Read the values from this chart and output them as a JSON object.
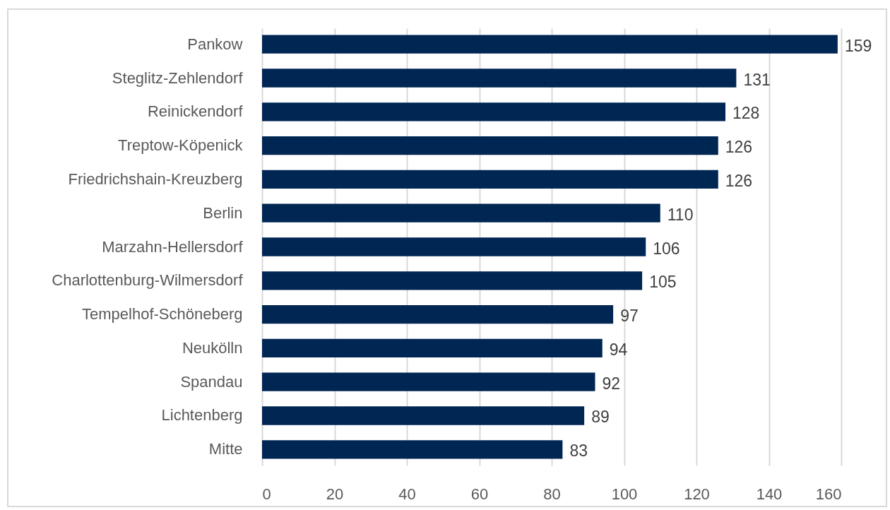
{
  "chart_data": {
    "type": "bar",
    "orientation": "horizontal",
    "categories": [
      "Pankow",
      "Steglitz-Zehlendorf",
      "Reinickendorf",
      "Treptow-Köpenick",
      "Friedrichshain-Kreuzberg",
      "Berlin",
      "Marzahn-Hellersdorf",
      "Charlottenburg-Wilmersdorf",
      "Tempelhof-Schöneberg",
      "Neukölln",
      "Spandau",
      "Lichtenberg",
      "Mitte"
    ],
    "values": [
      159,
      131,
      128,
      126,
      126,
      110,
      106,
      105,
      97,
      94,
      92,
      89,
      83
    ],
    "color": "#002654",
    "xlim": [
      0,
      160
    ],
    "xticks": [
      0,
      20,
      40,
      60,
      80,
      100,
      120,
      140,
      160
    ],
    "grid": "x",
    "data_labels": true
  }
}
